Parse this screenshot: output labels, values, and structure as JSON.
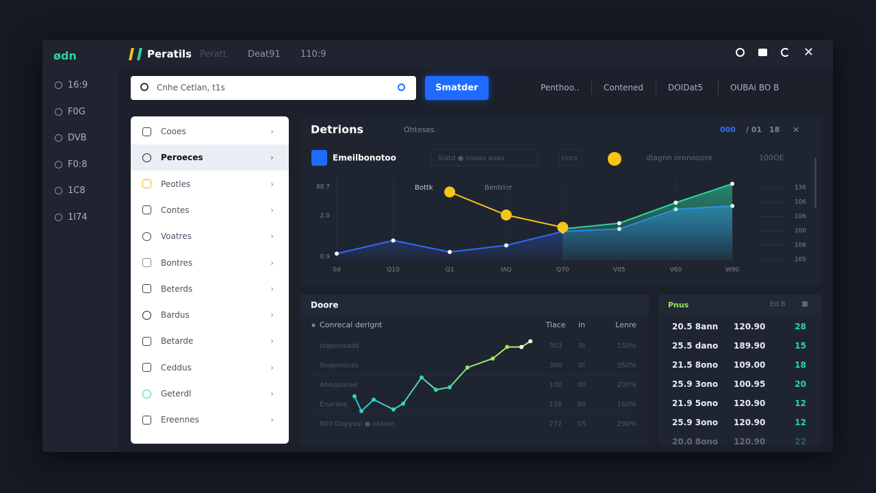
{
  "sidebar": {
    "logo": "ødn",
    "items": [
      "16:9",
      "F0G",
      "DVB",
      "F0:8",
      "1C8",
      "1I74"
    ]
  },
  "topbar": {
    "app_name": "Peratils",
    "tabs": [
      "Peratt",
      "Deat91",
      "110:9"
    ]
  },
  "search": {
    "placeholder": "Cnhe Cetlan, t1s",
    "button": "Smatder",
    "links": [
      "Penthoo..",
      "Contened",
      "DOIDat5",
      "OUBAi BO B"
    ]
  },
  "menu": {
    "items": [
      "Cooes",
      "Peroeces",
      "Peotles",
      "Contes",
      "Voatres",
      "Bontres",
      "Beterds",
      "Bardus",
      "Betarde",
      "Ceddus",
      "Geterdl",
      "Ereennes"
    ],
    "selected": 1
  },
  "main_chart": {
    "title": "Detrions",
    "subtitle": "Ohteses",
    "controls": [
      "000",
      "/ 01",
      "18"
    ],
    "legend_title": "Emeilbonotoo",
    "filter": "Slatd ● ooaas aoas",
    "filter_short": "Uora",
    "legend_right": "dlagnn oronooore",
    "legend_right_value": "100OE",
    "annotations": [
      "Bottk",
      "Bentrier"
    ],
    "y_labels": [
      "88 7",
      "2.0",
      "0.9"
    ],
    "y2_labels": [
      "136",
      "106",
      "106",
      "100",
      "106",
      "105"
    ],
    "x_labels": [
      "0d",
      "Q10",
      "Q1",
      "IAQ",
      "Q70",
      "V05",
      "V60",
      "W90"
    ],
    "ylim": [
      0,
      100
    ],
    "series": [
      {
        "color": "#2f6bff",
        "values": [
          8,
          24,
          10,
          18,
          35,
          38,
          62,
          66
        ]
      },
      {
        "color": "#2bd6a0",
        "values": [
          null,
          null,
          null,
          null,
          38,
          45,
          70,
          93
        ]
      },
      {
        "color": "#f5c518",
        "values": [
          null,
          null,
          83,
          55,
          40,
          null,
          null,
          null
        ]
      }
    ]
  },
  "bottom_left": {
    "title": "Doore",
    "legend": "Conrecal derlgnt",
    "columns": [
      "Tiace",
      "in",
      "Lenre"
    ],
    "rows": [
      [
        "Ioaponoads",
        "303",
        "0I",
        "150%"
      ],
      [
        "Iboponocas",
        "300",
        "0I",
        "350%"
      ],
      [
        "Aneopanse",
        "100",
        "00",
        "200%"
      ],
      [
        "Enaraos",
        "128",
        "00",
        "160%"
      ],
      [
        "800 Dopyasi ● otaine",
        "272",
        "05",
        "290%"
      ]
    ],
    "ylim": [
      0,
      100
    ],
    "line": [
      26,
      8,
      22,
      10,
      17,
      49,
      34,
      37,
      61,
      72,
      86,
      86,
      93
    ]
  },
  "bottom_right": {
    "title": "Pnus",
    "header_right": "Ed B",
    "rows": [
      [
        "20.5 8ann",
        "120.90",
        "28"
      ],
      [
        "25.5 dano",
        "189.90",
        "15"
      ],
      [
        "21.5 8ono",
        "109.00",
        "18"
      ],
      [
        "25.9 3ono",
        "100.95",
        "20"
      ],
      [
        "21.9 5ono",
        "120.90",
        "12"
      ],
      [
        "25.9 3ono",
        "120.90",
        "12"
      ],
      [
        "20.0 8ono",
        "120.90",
        "22"
      ]
    ]
  }
}
